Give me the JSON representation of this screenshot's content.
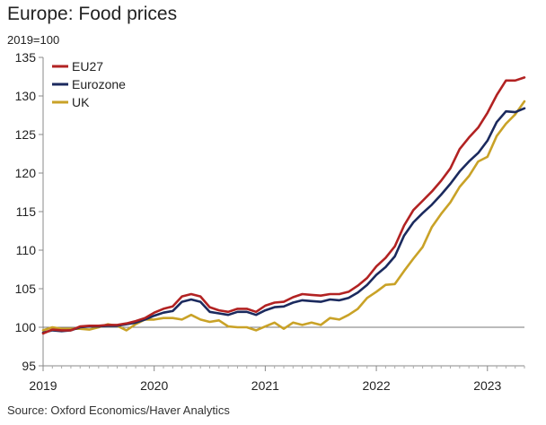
{
  "header": {
    "title": "Europe: Food prices",
    "unit": "2019=100"
  },
  "footer": {
    "source": "Source: Oxford Economics/Haver Analytics"
  },
  "chart_data": {
    "type": "line",
    "title": "Europe: Food prices",
    "ylabel": "2019=100",
    "xlabel": "",
    "ylim": [
      95,
      135
    ],
    "yticks": [
      95,
      100,
      105,
      110,
      115,
      120,
      125,
      130,
      135
    ],
    "xlim": [
      2019.0,
      2023.3333
    ],
    "xticks": [
      2019,
      2020,
      2021,
      2022,
      2023
    ],
    "xtick_labels": [
      "2019",
      "2020",
      "2021",
      "2022",
      "2023"
    ],
    "baseline": 100,
    "legend_position": "top-left",
    "grid": false,
    "series": [
      {
        "name": "EU27",
        "color": "#b22222",
        "x": [
          2019.0,
          2019.0833,
          2019.1667,
          2019.25,
          2019.3333,
          2019.4167,
          2019.5,
          2019.5833,
          2019.6667,
          2019.75,
          2019.8333,
          2019.9167,
          2020.0,
          2020.0833,
          2020.1667,
          2020.25,
          2020.3333,
          2020.4167,
          2020.5,
          2020.5833,
          2020.6667,
          2020.75,
          2020.8333,
          2020.9167,
          2021.0,
          2021.0833,
          2021.1667,
          2021.25,
          2021.3333,
          2021.4167,
          2021.5,
          2021.5833,
          2021.6667,
          2021.75,
          2021.8333,
          2021.9167,
          2022.0,
          2022.0833,
          2022.1667,
          2022.25,
          2022.3333,
          2022.4167,
          2022.5,
          2022.5833,
          2022.6667,
          2022.75,
          2022.8333,
          2022.9167,
          2023.0,
          2023.0833,
          2023.1667,
          2023.25,
          2023.3333
        ],
        "values": [
          99.2,
          99.7,
          99.6,
          99.6,
          100.1,
          100.2,
          100.2,
          100.3,
          100.3,
          100.5,
          100.8,
          101.2,
          101.9,
          102.4,
          102.7,
          104.0,
          104.3,
          104.0,
          102.6,
          102.2,
          102.0,
          102.4,
          102.4,
          102.0,
          102.8,
          103.2,
          103.3,
          103.9,
          104.3,
          104.2,
          104.1,
          104.3,
          104.3,
          104.6,
          105.4,
          106.4,
          107.9,
          109.0,
          110.5,
          113.2,
          115.2,
          116.4,
          117.6,
          119.0,
          120.6,
          123.1,
          124.6,
          125.9,
          127.8,
          130.1,
          132.0,
          132.0,
          132.4
        ]
      },
      {
        "name": "Eurozone",
        "color": "#1b2a5e",
        "x": [
          2019.0,
          2019.0833,
          2019.1667,
          2019.25,
          2019.3333,
          2019.4167,
          2019.5,
          2019.5833,
          2019.6667,
          2019.75,
          2019.8333,
          2019.9167,
          2020.0,
          2020.0833,
          2020.1667,
          2020.25,
          2020.3333,
          2020.4167,
          2020.5,
          2020.5833,
          2020.6667,
          2020.75,
          2020.8333,
          2020.9167,
          2021.0,
          2021.0833,
          2021.1667,
          2021.25,
          2021.3333,
          2021.4167,
          2021.5,
          2021.5833,
          2021.6667,
          2021.75,
          2021.8333,
          2021.9167,
          2022.0,
          2022.0833,
          2022.1667,
          2022.25,
          2022.3333,
          2022.4167,
          2022.5,
          2022.5833,
          2022.6667,
          2022.75,
          2022.8333,
          2022.9167,
          2023.0,
          2023.0833,
          2023.1667,
          2023.25,
          2023.3333
        ],
        "values": [
          99.3,
          99.6,
          99.5,
          99.6,
          100.0,
          100.1,
          100.1,
          100.2,
          100.2,
          100.4,
          100.6,
          101.0,
          101.5,
          101.9,
          102.1,
          103.3,
          103.6,
          103.3,
          102.0,
          101.8,
          101.6,
          102.0,
          102.0,
          101.6,
          102.2,
          102.6,
          102.7,
          103.2,
          103.5,
          103.4,
          103.3,
          103.6,
          103.5,
          103.8,
          104.5,
          105.5,
          106.8,
          107.8,
          109.2,
          111.9,
          113.6,
          114.8,
          115.9,
          117.2,
          118.6,
          120.2,
          121.5,
          122.6,
          124.2,
          126.6,
          128.0,
          127.9,
          128.4
        ]
      },
      {
        "name": "UK",
        "color": "#c9a227",
        "x": [
          2019.0,
          2019.0833,
          2019.1667,
          2019.25,
          2019.3333,
          2019.4167,
          2019.5,
          2019.5833,
          2019.6667,
          2019.75,
          2019.8333,
          2019.9167,
          2020.0,
          2020.0833,
          2020.1667,
          2020.25,
          2020.3333,
          2020.4167,
          2020.5,
          2020.5833,
          2020.6667,
          2020.75,
          2020.8333,
          2020.9167,
          2021.0,
          2021.0833,
          2021.1667,
          2021.25,
          2021.3333,
          2021.4167,
          2021.5,
          2021.5833,
          2021.6667,
          2021.75,
          2021.8333,
          2021.9167,
          2022.0,
          2022.0833,
          2022.1667,
          2022.25,
          2022.3333,
          2022.4167,
          2022.5,
          2022.5833,
          2022.6667,
          2022.75,
          2022.8333,
          2022.9167,
          2023.0,
          2023.0833,
          2023.1667,
          2023.25,
          2023.3333
        ],
        "values": [
          99.6,
          100.0,
          99.8,
          99.8,
          99.8,
          99.7,
          100.0,
          100.4,
          100.2,
          99.6,
          100.4,
          101.0,
          101.0,
          101.2,
          101.2,
          101.0,
          101.6,
          101.0,
          100.7,
          100.9,
          100.1,
          100.0,
          100.0,
          99.6,
          100.1,
          100.6,
          99.8,
          100.6,
          100.3,
          100.6,
          100.3,
          101.2,
          101.0,
          101.6,
          102.4,
          103.8,
          104.6,
          105.5,
          105.6,
          107.3,
          108.9,
          110.4,
          113.0,
          114.7,
          116.2,
          118.2,
          119.6,
          121.5,
          122.1,
          124.8,
          126.4,
          127.6,
          129.3
        ]
      }
    ]
  }
}
